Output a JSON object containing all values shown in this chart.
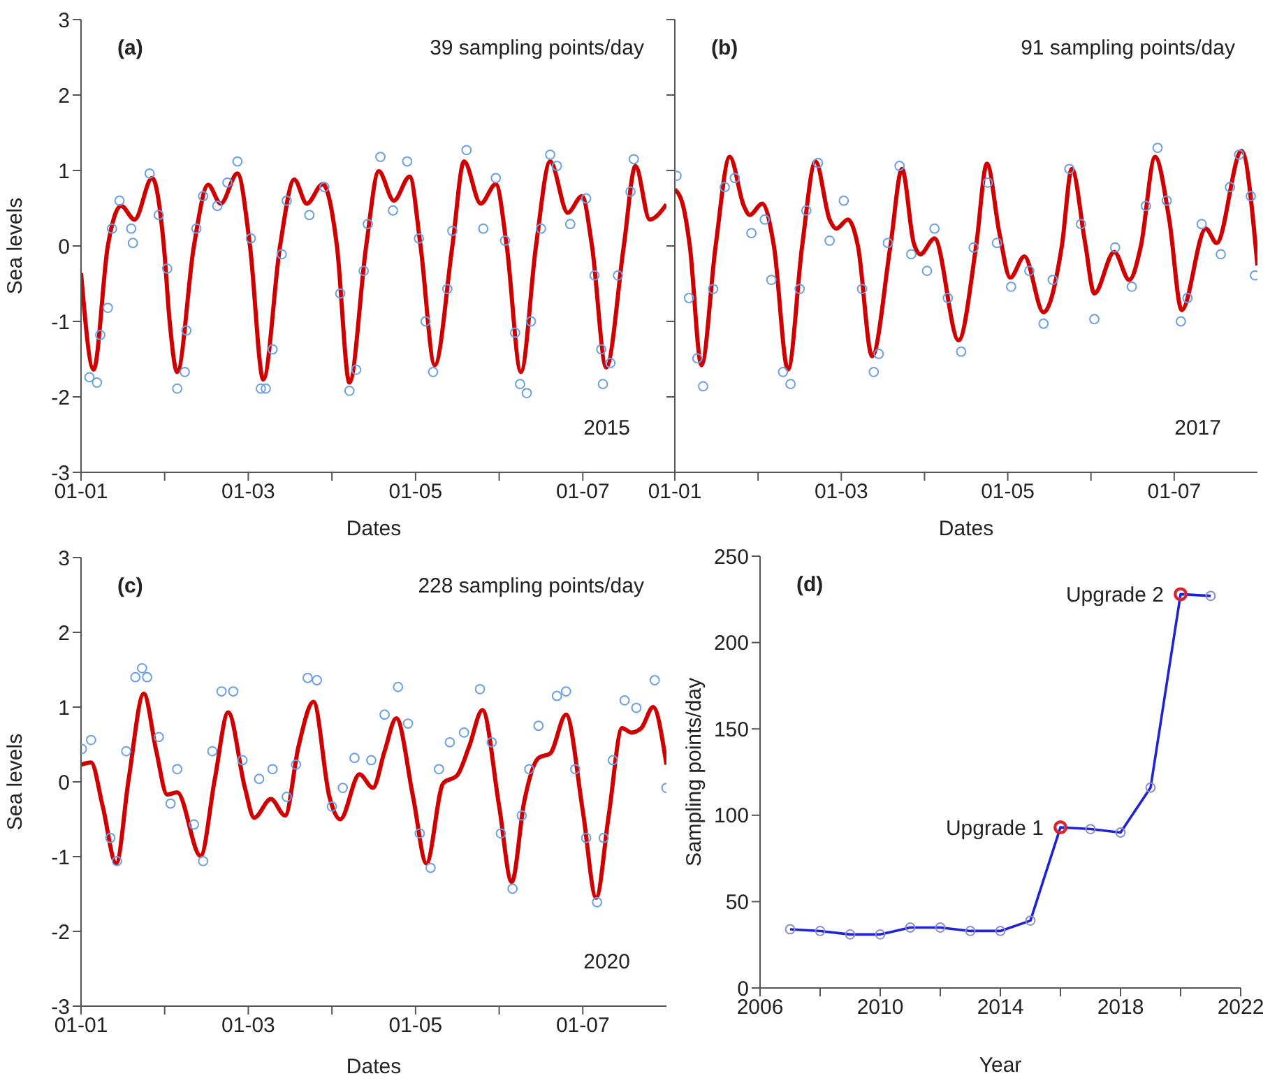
{
  "chart_data": [
    {
      "type": "line",
      "xlabel": "Dates",
      "ylabel": "Sea levels",
      "annotations": [
        "(a)",
        "39 sampling points/day",
        "2015"
      ],
      "xlim": [
        "--01-01",
        "--01-08"
      ],
      "xticks": [
        {
          "value": "--01-01",
          "label": "01-01"
        },
        {
          "value": "--01-02",
          "label": null
        },
        {
          "value": "--01-03",
          "label": "01-03"
        },
        {
          "value": "--01-04",
          "label": null
        },
        {
          "value": "--01-05",
          "label": "01-05"
        },
        {
          "value": "--01-06",
          "label": null
        },
        {
          "value": "--01-07",
          "label": "01-07"
        }
      ],
      "ylim": [
        -3,
        3
      ],
      "yticks": [
        -3,
        -2,
        -1,
        0,
        1,
        2,
        3
      ],
      "series": [
        {
          "type": "scatter",
          "marker": "circle",
          "color": "#6a9fe6",
          "x": [
            "--01-01T02:24",
            "--01-01T04:34",
            "--01-01T05:31",
            "--01-01T07:41",
            "--01-01T08:53",
            "--01-01T11:02",
            "--01-01T14:53",
            "--01-01T14:24",
            "--01-01T19:41",
            "--01-01T22:19",
            "--01-02T00:43",
            "--01-02T03:36",
            "--01-02T05:46",
            "--01-02T06:14",
            "--01-02T09:07",
            "--01-02T11:02",
            "--01-02T15:07",
            "--01-02T18:00",
            "--01-02T20:53",
            "--01-03T00:43",
            "--01-03T03:36",
            "--01-03T05:02",
            "--01-03T06:58",
            "--01-03T09:36",
            "--01-03T11:02",
            "--01-03T17:31",
            "--01-03T21:50",
            "--01-04T02:24",
            "--01-04T05:02",
            "--01-04T06:58",
            "--01-04T09:07",
            "--01-04T10:19",
            "--01-04T13:55",
            "--01-04T17:31",
            "--01-04T21:36",
            "--01-05T00:58",
            "--01-05T02:53",
            "--01-05T05:02",
            "--01-05T09:07",
            "--01-05T10:34",
            "--01-05T14:38",
            "--01-05T19:26",
            "--01-05T23:02",
            "--01-06T01:41",
            "--01-06T04:34",
            "--01-06T06:00",
            "--01-06T07:55",
            "--01-06T09:07",
            "--01-06T12:00",
            "--01-06T14:38",
            "--01-06T16:34",
            "--01-06T20:24",
            "--01-07T00:58",
            "--01-07T03:22",
            "--01-07T05:17",
            "--01-07T05:46",
            "--01-07T07:55",
            "--01-07T10:05",
            "--01-07T13:41",
            "--01-07T14:38"
          ],
          "values": [
            -1.74,
            -1.81,
            -1.18,
            -0.82,
            0.23,
            0.6,
            0.04,
            0.23,
            0.96,
            0.41,
            -0.3,
            -1.89,
            -1.67,
            -1.12,
            0.23,
            0.66,
            0.53,
            0.84,
            1.12,
            0.1,
            -1.89,
            -1.89,
            -1.37,
            -0.11,
            0.6,
            0.41,
            0.78,
            -0.63,
            -1.92,
            -1.64,
            -0.33,
            0.29,
            1.18,
            0.47,
            1.12,
            0.1,
            -1.0,
            -1.67,
            -0.57,
            0.2,
            1.27,
            0.23,
            0.9,
            0.07,
            -1.15,
            -1.83,
            -1.95,
            -1.0,
            0.23,
            1.21,
            1.06,
            0.29,
            0.63,
            -0.39,
            -1.37,
            -1.83,
            -1.55,
            -0.39,
            0.72,
            1.15
          ]
        },
        {
          "type": "line",
          "marker": "none",
          "color": "#d00000",
          "x": [
            "--01-01T00:00",
            "--01-01T03:36",
            "--01-01T07:41",
            "--01-01T11:31",
            "--01-01T15:22",
            "--01-01T20:24",
            "--01-01T23:46",
            "--01-02T01:26",
            "--01-02T03:36",
            "--01-02T08:24",
            "--01-02T12:29",
            "--01-02T16:05",
            "--01-02T20:53",
            "--01-03T00:29",
            "--01-03T04:19",
            "--01-03T09:07",
            "--01-03T13:12",
            "--01-03T16:48",
            "--01-03T21:22",
            "--01-04T01:26",
            "--01-04T05:02",
            "--01-04T09:50",
            "--01-04T13:26",
            "--01-04T17:46",
            "--01-04T22:19",
            "--01-05T01:26",
            "--01-05T05:31",
            "--01-05T10:34",
            "--01-05T13:55",
            "--01-05T18:43",
            "--01-05T23:02",
            "--01-06T02:10",
            "--01-06T06:14",
            "--01-06T10:34",
            "--01-06T14:38",
            "--01-06T19:41",
            "--01-06T23:46",
            "--01-07T02:38",
            "--01-07T06:43",
            "--01-07T11:46",
            "--01-07T15:07",
            "--01-07T19:12",
            "--01-08T00:00"
          ],
          "values": [
            -0.36,
            -1.64,
            0,
            0.53,
            0.35,
            0.9,
            0,
            -1.0,
            -1.67,
            0,
            0.81,
            0.56,
            0.96,
            0,
            -1.77,
            0,
            0.88,
            0.56,
            0.82,
            0,
            -1.81,
            0,
            0.99,
            0.6,
            0.92,
            0,
            -1.58,
            0,
            1.12,
            0.56,
            0.82,
            0,
            -1.67,
            0,
            1.12,
            0.44,
            0.66,
            0,
            -1.61,
            0,
            1.06,
            0.35,
            0.55
          ]
        }
      ]
    },
    {
      "type": "line",
      "xlabel": "Dates",
      "annotations": [
        "(b)",
        "91 sampling points/day",
        "2017"
      ],
      "tick_labels": "x",
      "xlim": [
        "--01-01",
        "--01-08"
      ],
      "xticks": [
        {
          "value": "--01-01",
          "label": "01-01"
        },
        {
          "value": "--01-02",
          "label": null
        },
        {
          "value": "--01-03",
          "label": "01-03"
        },
        {
          "value": "--01-04",
          "label": null
        },
        {
          "value": "--01-05",
          "label": "01-05"
        },
        {
          "value": "--01-06",
          "label": null
        },
        {
          "value": "--01-07",
          "label": "01-07"
        }
      ],
      "ylim": [
        -3,
        3
      ],
      "yticks": [
        -3,
        -2,
        -1,
        0,
        1,
        2,
        3
      ],
      "series": [
        {
          "type": "scatter",
          "marker": "circle",
          "color": "#6a9fe6",
          "x": [
            "--01-01T00:29",
            "--01-01T04:05",
            "--01-01T06:29",
            "--01-01T08:10",
            "--01-01T11:02",
            "--01-01T14:24",
            "--01-01T17:17",
            "--01-01T22:05",
            "--01-02T01:55",
            "--01-02T03:50",
            "--01-02T07:12",
            "--01-02T09:22",
            "--01-02T12:00",
            "--01-02T13:55",
            "--01-02T17:17",
            "--01-02T20:38",
            "--01-03T00:43",
            "--01-03T06:00",
            "--01-03T09:22",
            "--01-03T10:48",
            "--01-03T13:26",
            "--01-03T16:48",
            "--01-03T20:10",
            "--01-04T00:43",
            "--01-04T02:53",
            "--01-04T06:43",
            "--01-04T10:34",
            "--01-04T14:10",
            "--01-04T18:14",
            "--01-04T20:53",
            "--01-05T00:58",
            "--01-05T06:14",
            "--01-05T10:19",
            "--01-05T12:58",
            "--01-05T17:46",
            "--01-05T21:07",
            "--01-06T00:58",
            "--01-06T06:58",
            "--01-06T11:46",
            "--01-06T15:50",
            "--01-06T19:12",
            "--01-06T21:50",
            "--01-07T01:55",
            "--01-07T03:50",
            "--01-07T07:55",
            "--01-07T13:26",
            "--01-07T16:05",
            "--01-07T18:43",
            "--01-07T22:05",
            "--01-07T23:17"
          ],
          "values": [
            0.93,
            -0.69,
            -1.49,
            -1.86,
            -0.57,
            0.78,
            0.9,
            0.17,
            0.35,
            -0.45,
            -1.67,
            -1.83,
            -0.57,
            0.47,
            1.1,
            0.07,
            0.6,
            -0.57,
            -1.67,
            -1.43,
            0.04,
            1.06,
            -0.11,
            -0.33,
            0.23,
            -0.69,
            -1.4,
            -0.02,
            0.84,
            0.04,
            -0.54,
            -0.33,
            -1.03,
            -0.45,
            1.02,
            0.29,
            -0.97,
            -0.02,
            -0.54,
            0.53,
            1.3,
            0.6,
            -1.0,
            -0.69,
            0.29,
            -0.11,
            0.78,
            1.21,
            0.66,
            -0.39
          ]
        },
        {
          "type": "line",
          "marker": "none",
          "color": "#d00000",
          "x": [
            "--01-01T00:00",
            "--01-01T02:24",
            "--01-01T04:19",
            "--01-01T07:41",
            "--01-01T11:46",
            "--01-01T15:50",
            "--01-01T19:55",
            "--01-01T21:36",
            "--01-02T01:12",
            "--01-02T04:34",
            "--01-02T08:38",
            "--01-02T12:43",
            "--01-02T16:34",
            "--01-02T20:38",
            "--01-02T22:34",
            "--01-03T01:55",
            "--01-03T04:48",
            "--01-03T08:53",
            "--01-03T14:10",
            "--01-03T17:31",
            "--01-03T20:53",
            "--01-03T22:48",
            "--01-04T02:53",
            "--01-04T09:50",
            "--01-04T14:53",
            "--01-04T18:00",
            "--01-04T21:36",
            "--01-05T00:43",
            "--01-05T04:48",
            "--01-05T10:19",
            "--01-05T15:36",
            "--01-05T18:29",
            "--01-05T22:19",
            "--01-06T00:58",
            "--01-06T06:43",
            "--01-06T11:02",
            "--01-06T14:24",
            "--01-06T18:29",
            "--01-06T22:34",
            "--01-07T02:10",
            "--01-07T09:07",
            "--01-07T12:14",
            "--01-07T19:26",
            "--01-08T00:00"
          ],
          "values": [
            0.75,
            0.53,
            0,
            -1.58,
            0,
            1.18,
            0.53,
            0.41,
            0.56,
            0,
            -1.64,
            0,
            1.12,
            0.35,
            0.23,
            0.35,
            0,
            -1.46,
            0,
            1.02,
            0.04,
            -0.11,
            0.1,
            -1.25,
            0,
            1.09,
            0.17,
            -0.42,
            -0.14,
            -0.88,
            0,
            1.02,
            0.04,
            -0.63,
            -0.08,
            -0.45,
            0,
            1.18,
            0.35,
            -0.85,
            0.23,
            0.04,
            1.26,
            -0.26
          ]
        }
      ]
    },
    {
      "type": "line",
      "xlabel": "Dates",
      "ylabel": "Sea levels",
      "annotations": [
        "(c)",
        "228 sampling points/day",
        "2020"
      ],
      "xlim": [
        "--01-01",
        "--01-08"
      ],
      "xticks": [
        {
          "value": "--01-01",
          "label": "01-01"
        },
        {
          "value": "--01-02",
          "label": null
        },
        {
          "value": "--01-03",
          "label": "01-03"
        },
        {
          "value": "--01-04",
          "label": null
        },
        {
          "value": "--01-05",
          "label": "01-05"
        },
        {
          "value": "--01-06",
          "label": null
        },
        {
          "value": "--01-07",
          "label": "01-07"
        }
      ],
      "ylim": [
        -3,
        3
      ],
      "yticks": [
        -3,
        -2,
        -1,
        0,
        1,
        2,
        3
      ],
      "series": [
        {
          "type": "scatter",
          "marker": "circle",
          "color": "#6a9fe6",
          "x": [
            "--01-01T00:14",
            "--01-01T02:53",
            "--01-01T08:24",
            "--01-01T10:19",
            "--01-01T12:58",
            "--01-01T15:36",
            "--01-01T17:31",
            "--01-01T18:58",
            "--01-01T22:19",
            "--01-02T01:41",
            "--01-02T03:36",
            "--01-02T08:24",
            "--01-02T11:02",
            "--01-02T13:41",
            "--01-02T16:19",
            "--01-02T19:41",
            "--01-02T22:19",
            "--01-03T03:07",
            "--01-03T06:58",
            "--01-03T11:02",
            "--01-03T13:41",
            "--01-03T17:02",
            "--01-03T19:41",
            "--01-04T00:00",
            "--01-04T03:07",
            "--01-04T06:29",
            "--01-04T11:17",
            "--01-04T15:07",
            "--01-04T18:58",
            "--01-04T21:50",
            "--01-05T01:12",
            "--01-05T04:19",
            "--01-05T06:43",
            "--01-05T09:50",
            "--01-05T13:55",
            "--01-05T18:29",
            "--01-05T21:50",
            "--01-06T00:29",
            "--01-06T03:50",
            "--01-06T06:29",
            "--01-06T08:38",
            "--01-06T11:17",
            "--01-06T16:34",
            "--01-06T19:12",
            "--01-06T21:50",
            "--01-07T00:58",
            "--01-07T04:05",
            "--01-07T06:00",
            "--01-07T08:38",
            "--01-07T12:00",
            "--01-07T15:22",
            "--01-07T20:38",
            "--01-08T00:00"
          ],
          "values": [
            0.44,
            0.56,
            -0.75,
            -1.06,
            0.41,
            1.4,
            1.52,
            1.4,
            0.6,
            -0.29,
            0.17,
            -0.57,
            -1.06,
            0.41,
            1.21,
            1.21,
            0.29,
            0.04,
            0.17,
            -0.2,
            0.23,
            1.39,
            1.36,
            -0.33,
            -0.08,
            0.32,
            0.29,
            0.9,
            1.27,
            0.78,
            -0.69,
            -1.15,
            0.17,
            0.53,
            0.66,
            1.24,
            0.53,
            -0.69,
            -1.43,
            -0.45,
            0.17,
            0.75,
            1.15,
            1.21,
            0.17,
            -0.75,
            -1.61,
            -0.75,
            0.29,
            1.09,
            0.99,
            1.36,
            -0.08
          ]
        },
        {
          "type": "line",
          "marker": "none",
          "color": "#d00000",
          "x": [
            "--01-01T00:00",
            "--01-01T02:53",
            "--01-01T06:14",
            "--01-01T10:05",
            "--01-01T13:41",
            "--01-01T18:00",
            "--01-01T21:36",
            "--01-02T00:43",
            "--01-02T03:36",
            "--01-02T10:19",
            "--01-02T14:24",
            "--01-02T18:14",
            "--01-02T23:02",
            "--01-03T01:41",
            "--01-03T06:29",
            "--01-03T10:34",
            "--01-03T14:24",
            "--01-03T18:43",
            "--01-03T23:17",
            "--01-04T02:24",
            "--01-04T07:55",
            "--01-04T11:46",
            "--01-04T15:07",
            "--01-04T18:29",
            "--01-04T23:17",
            "--01-05T03:07",
            "--01-05T07:55",
            "--01-05T12:00",
            "--01-05T15:22",
            "--01-05T19:12",
            "--01-06T00:00",
            "--01-06T03:36",
            "--01-06T07:12",
            "--01-06T11:17",
            "--01-06T14:38",
            "--01-06T19:12",
            "--01-07T00:00",
            "--01-07T03:50",
            "--01-07T07:26",
            "--01-07T11:17",
            "--01-07T13:55",
            "--01-07T16:48",
            "--01-07T20:10",
            "--01-08T00:00"
          ],
          "values": [
            0.23,
            0.26,
            -0.33,
            -1.09,
            0.04,
            1.18,
            0.41,
            -0.17,
            -0.14,
            -0.99,
            0.04,
            0.93,
            -0.08,
            -0.48,
            -0.23,
            -0.45,
            0.47,
            1.07,
            -0.2,
            -0.5,
            0.1,
            -0.08,
            0.41,
            0.85,
            -0.2,
            -1.09,
            -0.02,
            0.09,
            0.47,
            0.96,
            -0.33,
            -1.34,
            -0.26,
            0.32,
            0.38,
            0.9,
            -0.39,
            -1.55,
            -0.45,
            0.72,
            0.66,
            0.72,
            1.0,
            0.23
          ]
        }
      ]
    },
    {
      "type": "line",
      "xlabel": "Year",
      "ylabel": "Sampling points/day",
      "annotations": [
        "(d)",
        {
          "text": "Upgrade 1",
          "x": 2016,
          "y": 93
        },
        {
          "text": "Upgrade 2",
          "x": 2020,
          "y": 228
        }
      ],
      "xlim": [
        2006,
        2022
      ],
      "xticks": [
        2006,
        {
          "value": 2008,
          "label": null
        },
        2010,
        {
          "value": 2012,
          "label": null
        },
        2014,
        {
          "value": 2016,
          "label": null
        },
        2018,
        {
          "value": 2020,
          "label": null
        },
        2022
      ],
      "ylim": [
        0,
        250
      ],
      "yticks": [
        0,
        50,
        100,
        150,
        200,
        250
      ],
      "series": [
        {
          "type": "line",
          "marker": "circle",
          "color": "#1f22d6",
          "x": [
            2007,
            2008,
            2009,
            2010,
            2011,
            2012,
            2013,
            2014,
            2015,
            2016,
            2017,
            2018,
            2019,
            2020,
            2021
          ],
          "values": [
            34,
            33,
            31,
            31,
            35,
            35,
            33,
            33,
            39,
            93,
            92,
            90,
            116,
            228,
            227
          ]
        }
      ]
    }
  ]
}
